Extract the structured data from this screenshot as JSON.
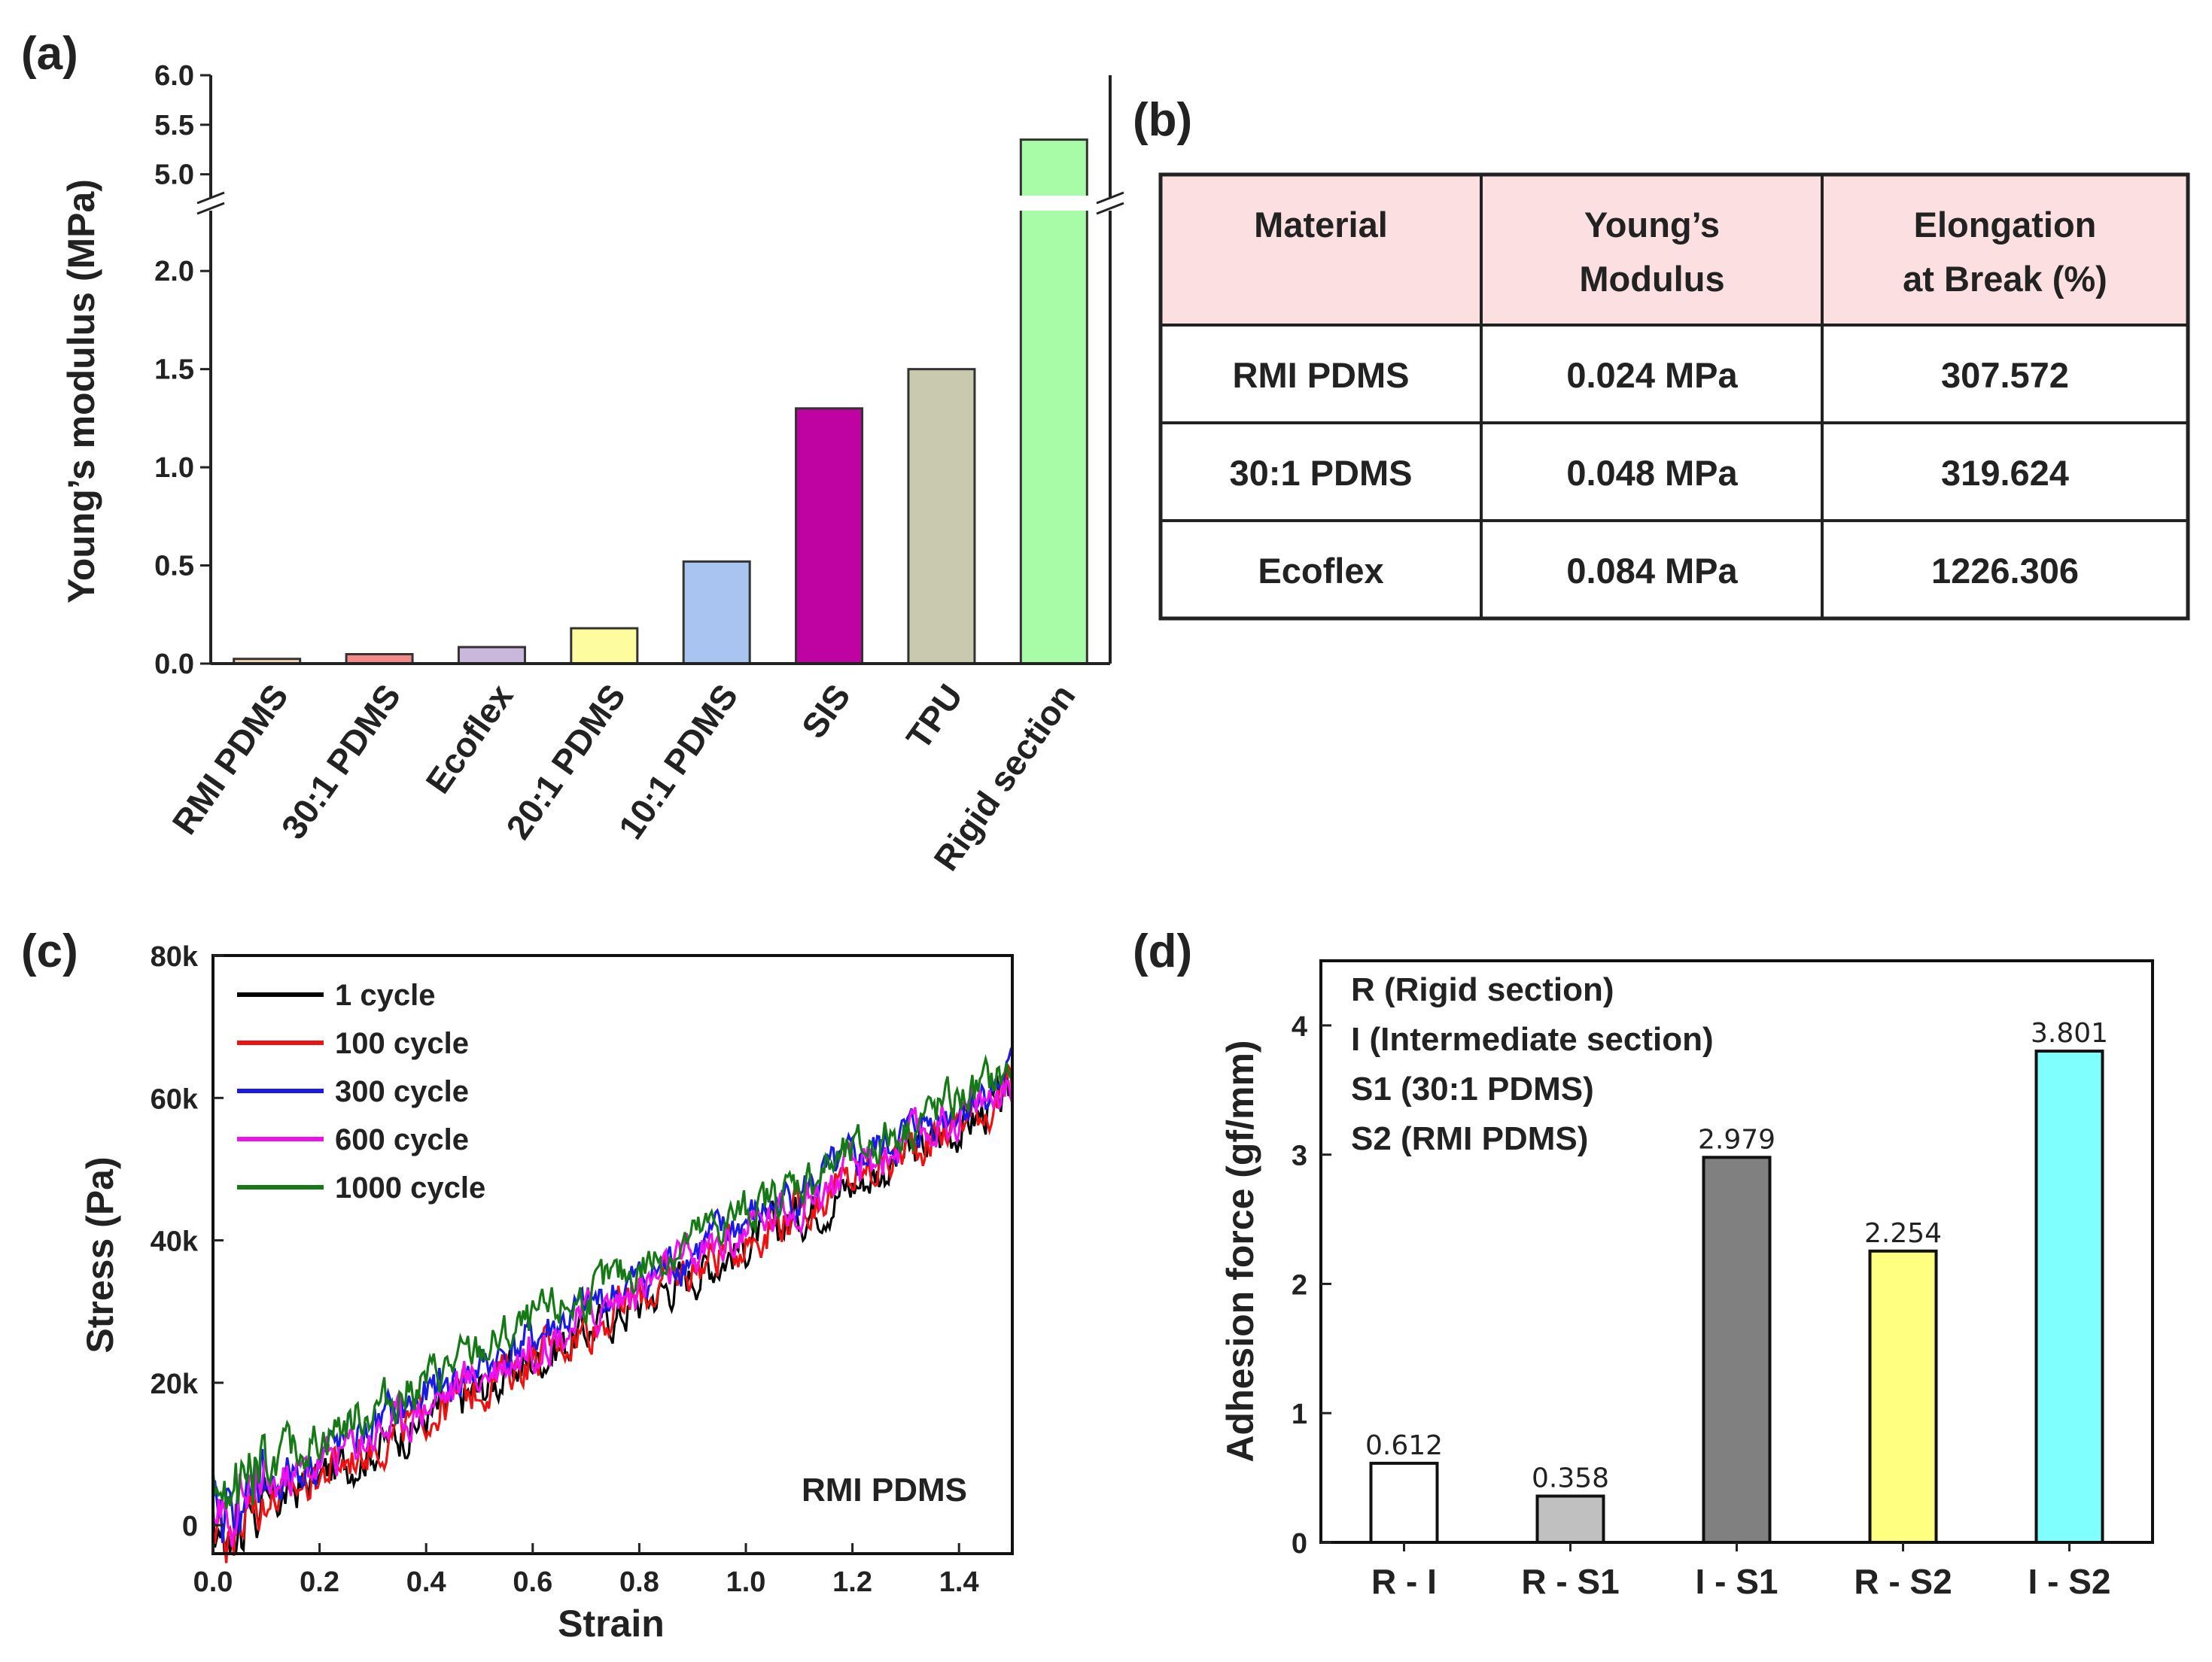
{
  "panels": {
    "a": "(a)",
    "b": "(b)",
    "c": "(c)",
    "d": "(d)"
  },
  "chart_data": [
    {
      "id": "a",
      "type": "bar",
      "title": "",
      "xlabel": "",
      "ylabel": "Young’s modulus (MPa)",
      "axis_break": {
        "lower": [
          0,
          2.2
        ],
        "upper": [
          4.8,
          6.0
        ]
      },
      "yticks_lower": [
        "0.0",
        "0.5",
        "1.0",
        "1.5",
        "2.0"
      ],
      "yticks_upper": [
        "5.0",
        "5.5",
        "6.0"
      ],
      "categories": [
        "RMI PDMS",
        "30:1 PDMS",
        "Ecoflex",
        "20:1 PDMS",
        "10:1 PDMS",
        "SIS",
        "TPU",
        "Rigid section"
      ],
      "values": [
        0.024,
        0.048,
        0.084,
        0.18,
        0.52,
        1.3,
        1.5,
        5.35
      ],
      "colors": [
        "#f6d9b2",
        "#f28a8a",
        "#c9b8dc",
        "#fdfc9e",
        "#a9c4f0",
        "#bf03a2",
        "#c8c9ae",
        "#a8fca8"
      ]
    },
    {
      "id": "b",
      "type": "table",
      "headers": [
        [
          "Material"
        ],
        [
          "Young’s",
          "Modulus"
        ],
        [
          "Elongation",
          "at Break (%)"
        ]
      ],
      "rows": [
        [
          "RMI PDMS",
          "0.024 MPa",
          "307.572"
        ],
        [
          "30:1 PDMS",
          "0.048 MPa",
          "319.624"
        ],
        [
          "Ecoflex",
          "0.084 MPa",
          "1226.306"
        ]
      ],
      "header_color": "#fcdfe0"
    },
    {
      "id": "c",
      "type": "line",
      "title": "",
      "xlabel": "Strain",
      "ylabel": "Stress (Pa)",
      "xlim": [
        0,
        1.5
      ],
      "ylim": [
        -4000,
        80000
      ],
      "xticks": [
        "0.0",
        "0.2",
        "0.4",
        "0.6",
        "0.8",
        "1.0",
        "1.2",
        "1.4"
      ],
      "yticks": [
        "0",
        "20k",
        "40k",
        "60k",
        "80k"
      ],
      "annotation": "RMI PDMS",
      "series": [
        {
          "name": "1 cycle",
          "color": "#000000",
          "offset": -1500,
          "slope": 41000,
          "x": [
            0,
            0.1,
            0.2,
            0.3,
            0.4,
            0.5,
            0.6,
            0.7,
            0.8,
            0.9,
            1.0,
            1.1,
            1.2,
            1.3,
            1.4,
            1.5
          ],
          "y": [
            -1500,
            2600,
            6700,
            10800,
            14900,
            19000,
            23100,
            27200,
            31300,
            35400,
            39500,
            43600,
            47700,
            51800,
            55900,
            60000
          ]
        },
        {
          "name": "100 cycle",
          "color": "#ee1111",
          "offset": -1200,
          "slope": 41400,
          "x": [
            0,
            0.1,
            0.2,
            0.3,
            0.4,
            0.5,
            0.6,
            0.7,
            0.8,
            0.9,
            1.0,
            1.1,
            1.2,
            1.3,
            1.4,
            1.5
          ],
          "y": [
            -1200,
            2900,
            7100,
            11200,
            15400,
            19500,
            23600,
            27800,
            31900,
            36100,
            40200,
            44300,
            48500,
            52600,
            56800,
            60900
          ]
        },
        {
          "name": "300 cycle",
          "color": "#1a1ae6",
          "offset": 1500,
          "slope": 41000,
          "x": [
            0,
            0.1,
            0.2,
            0.3,
            0.4,
            0.5,
            0.6,
            0.7,
            0.8,
            0.9,
            1.0,
            1.1,
            1.2,
            1.3,
            1.4,
            1.5
          ],
          "y": [
            1500,
            5600,
            9700,
            13800,
            17900,
            22000,
            26100,
            30200,
            34300,
            38400,
            42500,
            46600,
            50700,
            54800,
            58900,
            63000
          ]
        },
        {
          "name": "600 cycle",
          "color": "#ee11ee",
          "offset": 800,
          "slope": 40600,
          "x": [
            0,
            0.1,
            0.2,
            0.3,
            0.4,
            0.5,
            0.6,
            0.7,
            0.8,
            0.9,
            1.0,
            1.1,
            1.2,
            1.3,
            1.4,
            1.5
          ],
          "y": [
            800,
            4900,
            8900,
            13000,
            17000,
            21100,
            25200,
            29200,
            33300,
            37300,
            41400,
            45500,
            49500,
            53600,
            57600,
            61700
          ]
        },
        {
          "name": "1000 cycle",
          "color": "#157a15",
          "offset": 4500,
          "slope": 39500,
          "x": [
            0,
            0.1,
            0.2,
            0.3,
            0.4,
            0.5,
            0.6,
            0.7,
            0.8,
            0.9,
            1.0,
            1.1,
            1.2,
            1.3,
            1.4,
            1.5
          ],
          "y": [
            4500,
            8500,
            12400,
            16400,
            20300,
            24300,
            28200,
            32200,
            36100,
            40100,
            44000,
            48000,
            51900,
            55900,
            59800,
            63800
          ]
        }
      ]
    },
    {
      "id": "d",
      "type": "bar",
      "title": "",
      "xlabel": "",
      "ylabel": "Adhesion force (gf/mm)",
      "ylim": [
        0,
        4.5
      ],
      "yticks": [
        "0",
        "1",
        "2",
        "3",
        "4"
      ],
      "categories": [
        "R - I",
        "R - S1",
        "I - S1",
        "R - S2",
        "I - S2"
      ],
      "values": [
        0.612,
        0.358,
        2.979,
        2.254,
        3.801
      ],
      "value_labels": [
        "0.612",
        "0.358",
        "2.979",
        "2.254",
        "3.801"
      ],
      "colors": [
        "#ffffff",
        "#c0c0c0",
        "#808080",
        "#ffff80",
        "#80ffff"
      ],
      "legend_notes": [
        "R (Rigid section)",
        "I (Intermediate section)",
        "S1 (30:1 PDMS)",
        "S2 (RMI PDMS)"
      ]
    }
  ]
}
